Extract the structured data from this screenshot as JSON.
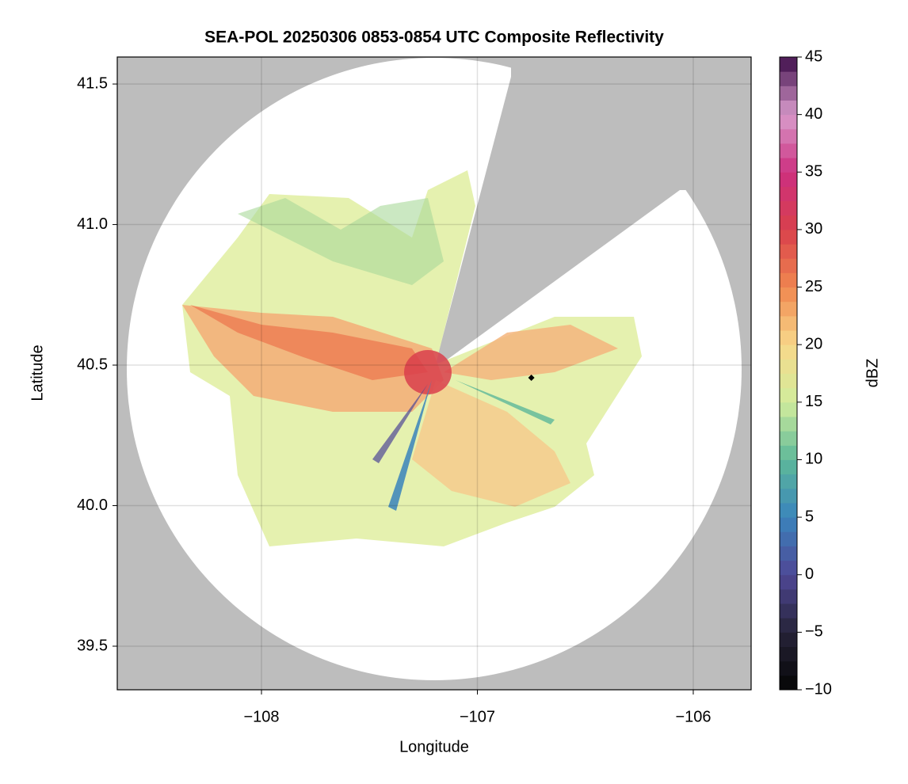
{
  "chart_data": {
    "type": "map",
    "title": "SEA-POL 20250306 0853-0854 UTC Composite Reflectivity",
    "x_label": "Longitude",
    "y_label": "Latitude",
    "xlim": [
      -108.668,
      -105.732
    ],
    "ylim": [
      39.345,
      41.596
    ],
    "xticks": [
      {
        "value": -108,
        "label": "−108"
      },
      {
        "value": -107,
        "label": "−107"
      },
      {
        "value": -106,
        "label": "−106"
      }
    ],
    "yticks": [
      {
        "value": 39.5,
        "label": "39.5"
      },
      {
        "value": 40,
        "label": "40.0"
      },
      {
        "value": 40.5,
        "label": "40.5"
      },
      {
        "value": 41,
        "label": "41.0"
      },
      {
        "value": 41.5,
        "label": "41.5"
      }
    ],
    "grid": true,
    "x": [
      -106.75
    ],
    "y": [
      40.455
    ],
    "color": "#000000",
    "colorbar_label": "dBZ",
    "clim": [
      -10,
      45
    ],
    "cticks": [
      {
        "value": -10,
        "label": "−10"
      },
      {
        "value": -5,
        "label": "−5"
      },
      0,
      5,
      10,
      15,
      20,
      25,
      30,
      35,
      40,
      45
    ],
    "colormap": [
      "#050505",
      "#262338",
      "#4f4796",
      "#3a84bc",
      "#5db89a",
      "#d1ec9c",
      "#f8d88a",
      "#f0874f",
      "#d9404c",
      "#cc2f7f",
      "#d99ccc",
      "#3d0d4a"
    ]
  }
}
